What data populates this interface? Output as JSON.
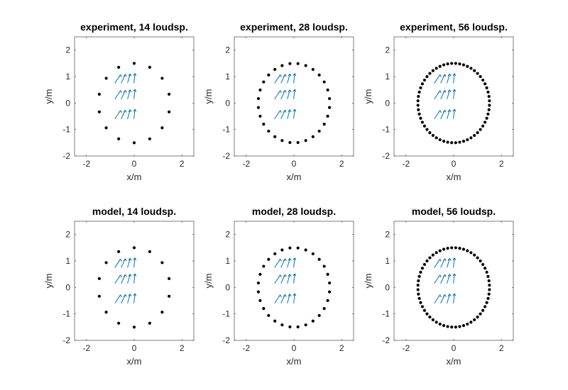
{
  "chart_data": [
    {
      "type": "scatter",
      "title": "experiment, 14 loudsp.",
      "xlabel": "x/m",
      "ylabel": "y/m",
      "xlim": [
        -2.5,
        2.5
      ],
      "ylim": [
        -2,
        2.5
      ],
      "xticks": [
        "-2",
        "0",
        "2"
      ],
      "yticks": [
        "-2",
        "-1",
        "0",
        "1",
        "2"
      ],
      "loudspeakers": {
        "count": 14,
        "radius": 1.5,
        "color": "#000000"
      },
      "field": {
        "color": "#0072BD",
        "grid_x": [
          -0.75,
          -0.5,
          -0.25,
          0.0
        ],
        "grid_y": [
          0.75,
          0.15,
          -0.6
        ]
      }
    },
    {
      "type": "scatter",
      "title": "experiment, 28 loudsp.",
      "xlabel": "x/m",
      "ylabel": "y/m",
      "xlim": [
        -2.5,
        2.5
      ],
      "ylim": [
        -2,
        2.5
      ],
      "xticks": [
        "-2",
        "0",
        "2"
      ],
      "yticks": [
        "-2",
        "-1",
        "0",
        "1",
        "2"
      ],
      "loudspeakers": {
        "count": 28,
        "radius": 1.5,
        "color": "#000000"
      },
      "field": {
        "color": "#0072BD",
        "grid_x": [
          -0.75,
          -0.5,
          -0.25,
          0.0
        ],
        "grid_y": [
          0.75,
          0.15,
          -0.6
        ]
      }
    },
    {
      "type": "scatter",
      "title": "experiment, 56 loudsp.",
      "xlabel": "x/m",
      "ylabel": "y/m",
      "xlim": [
        -2.5,
        2.5
      ],
      "ylim": [
        -2,
        2.5
      ],
      "xticks": [
        "-2",
        "0",
        "2"
      ],
      "yticks": [
        "-2",
        "-1",
        "0",
        "1",
        "2"
      ],
      "loudspeakers": {
        "count": 56,
        "radius": 1.5,
        "color": "#000000"
      },
      "field": {
        "color": "#0072BD",
        "grid_x": [
          -0.75,
          -0.5,
          -0.25,
          0.0
        ],
        "grid_y": [
          0.75,
          0.15,
          -0.6
        ]
      }
    },
    {
      "type": "scatter",
      "title": "model, 14 loudsp.",
      "xlabel": "x/m",
      "ylabel": "y/m",
      "xlim": [
        -2.5,
        2.5
      ],
      "ylim": [
        -2,
        2.5
      ],
      "xticks": [
        "-2",
        "0",
        "2"
      ],
      "yticks": [
        "-2",
        "-1",
        "0",
        "1",
        "2"
      ],
      "loudspeakers": {
        "count": 14,
        "radius": 1.5,
        "color": "#000000"
      },
      "field": {
        "color": "#0072BD",
        "grid_x": [
          -0.75,
          -0.5,
          -0.25,
          0.0
        ],
        "grid_y": [
          0.75,
          0.15,
          -0.6
        ]
      }
    },
    {
      "type": "scatter",
      "title": "model, 28 loudsp.",
      "xlabel": "x/m",
      "ylabel": "y/m",
      "xlim": [
        -2.5,
        2.5
      ],
      "ylim": [
        -2,
        2.5
      ],
      "xticks": [
        "-2",
        "0",
        "2"
      ],
      "yticks": [
        "-2",
        "-1",
        "0",
        "1",
        "2"
      ],
      "loudspeakers": {
        "count": 28,
        "radius": 1.5,
        "color": "#000000"
      },
      "field": {
        "color": "#0072BD",
        "grid_x": [
          -0.75,
          -0.5,
          -0.25,
          0.0
        ],
        "grid_y": [
          0.75,
          0.15,
          -0.6
        ]
      }
    },
    {
      "type": "scatter",
      "title": "model, 56 loudsp.",
      "xlabel": "x/m",
      "ylabel": "y/m",
      "xlim": [
        -2.5,
        2.5
      ],
      "ylim": [
        -2,
        2.5
      ],
      "xticks": [
        "-2",
        "0",
        "2"
      ],
      "yticks": [
        "-2",
        "-1",
        "0",
        "1",
        "2"
      ],
      "loudspeakers": {
        "count": 56,
        "radius": 1.5,
        "color": "#000000"
      },
      "field": {
        "color": "#0072BD",
        "grid_x": [
          -0.75,
          -0.5,
          -0.25,
          0.0
        ],
        "grid_y": [
          0.75,
          0.15,
          -0.6
        ]
      }
    }
  ]
}
